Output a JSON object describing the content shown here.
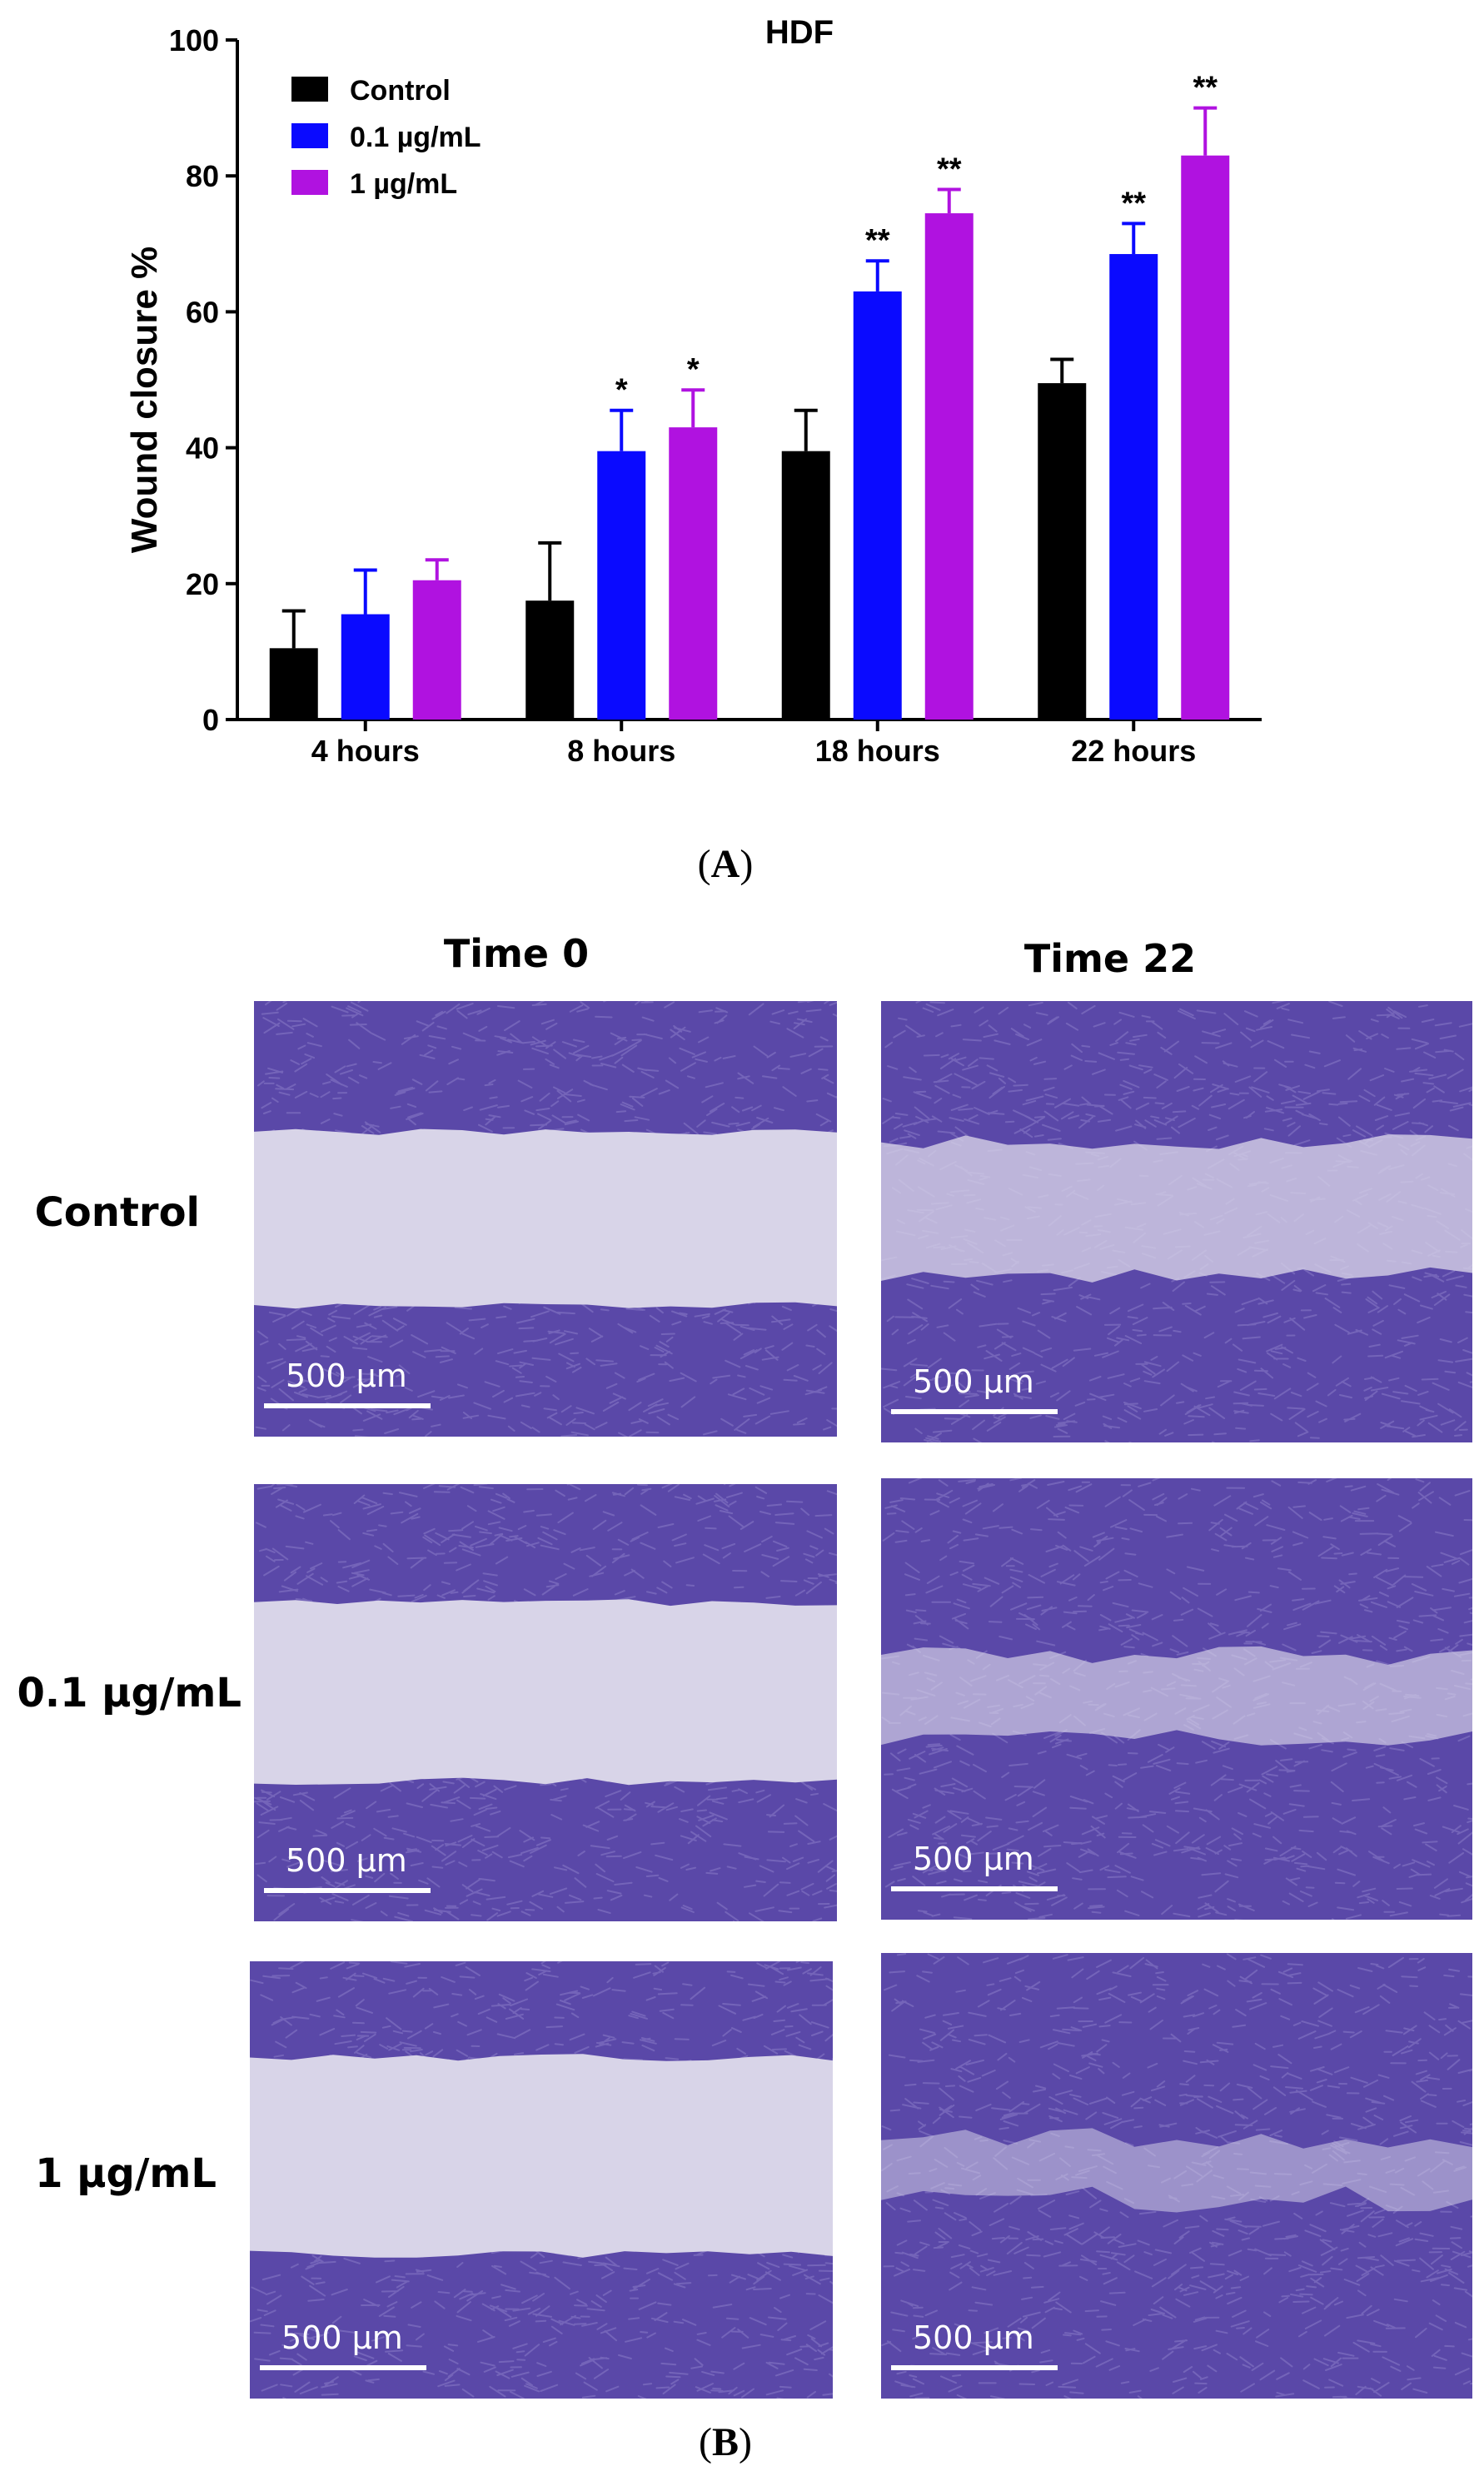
{
  "chart_data": {
    "type": "bar",
    "title": "HDF",
    "ylabel": "Wound closure %",
    "xlabel": "",
    "ylim": [
      0,
      100
    ],
    "yticks": [
      0,
      20,
      40,
      60,
      80,
      100
    ],
    "categories": [
      "4 hours",
      "8 hours",
      "18 hours",
      "22 hours"
    ],
    "legend_position": "top-left",
    "series": [
      {
        "name": "Control",
        "color": "#000000",
        "values": [
          10.5,
          17.5,
          39.5,
          49.5
        ],
        "errors": [
          5.5,
          8.5,
          6,
          3.5
        ],
        "significance": [
          "",
          "",
          "",
          ""
        ]
      },
      {
        "name": "0.1 µg/mL",
        "color": "#0a0aff",
        "values": [
          15.5,
          39.5,
          63,
          68.5
        ],
        "errors": [
          6.5,
          6,
          4.5,
          4.5
        ],
        "significance": [
          "",
          "*",
          "**",
          "**"
        ]
      },
      {
        "name": "1 µg/mL",
        "color": "#b012e0",
        "values": [
          20.5,
          43,
          74.5,
          83
        ],
        "errors": [
          3,
          5.5,
          3.5,
          7
        ],
        "significance": [
          "",
          "*",
          "**",
          "**"
        ]
      }
    ]
  },
  "panels": {
    "a_label": "A",
    "b_label": "B"
  },
  "micrographs": {
    "columns": [
      "Time 0",
      "Time 22"
    ],
    "rows": [
      "Control",
      "0.1 µg/mL",
      "1 µg/mL"
    ],
    "scale_label": "500 µm",
    "stain_color": "#5a48a8",
    "background_color": "#d8d4e8"
  }
}
